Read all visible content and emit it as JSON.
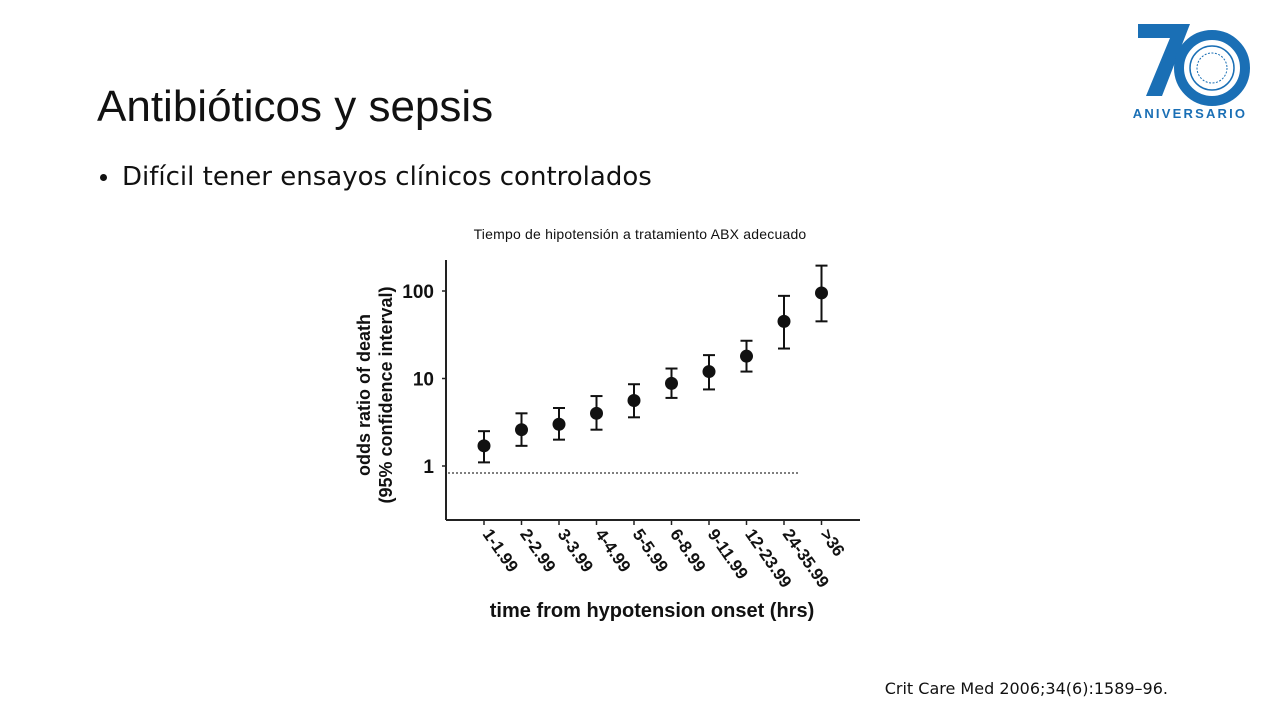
{
  "slide": {
    "title": "Antibióticos y sepsis",
    "bullet": "Difícil tener ensayos clínicos controlados",
    "chart_caption": "Tiempo de hipotensión a tratamiento ABX adecuado",
    "citation": "Crit Care Med 2006;34(6):1589–96."
  },
  "logo": {
    "text": "ANIVERSARIO",
    "number": "70",
    "primary_color": "#1a6fb5"
  },
  "chart_data": {
    "type": "scatter",
    "ylabel": "odds ratio of death\n(95% confidence interval)",
    "xlabel": "time from hypotension onset (hrs)",
    "yscale": "log",
    "ylim": [
      0.5,
      200
    ],
    "yticks": [
      1,
      10,
      100
    ],
    "reference_line": 1,
    "categories": [
      "1-1.99",
      "2-2.99",
      "3-3.99",
      "4-4.99",
      "5-5.99",
      "6-8.99",
      "9-11.99",
      "12-23.99",
      "24-35.99",
      ">36"
    ],
    "series": [
      {
        "values": [
          1.7,
          2.6,
          3.0,
          4.0,
          5.6,
          8.8,
          12,
          18,
          45,
          95
        ],
        "ci_low": [
          1.1,
          1.7,
          2.0,
          2.6,
          3.6,
          6.0,
          7.5,
          12,
          22,
          45
        ],
        "ci_high": [
          2.5,
          4.0,
          4.6,
          6.3,
          8.6,
          13,
          18.5,
          27,
          88,
          195
        ]
      }
    ],
    "grid": false
  }
}
